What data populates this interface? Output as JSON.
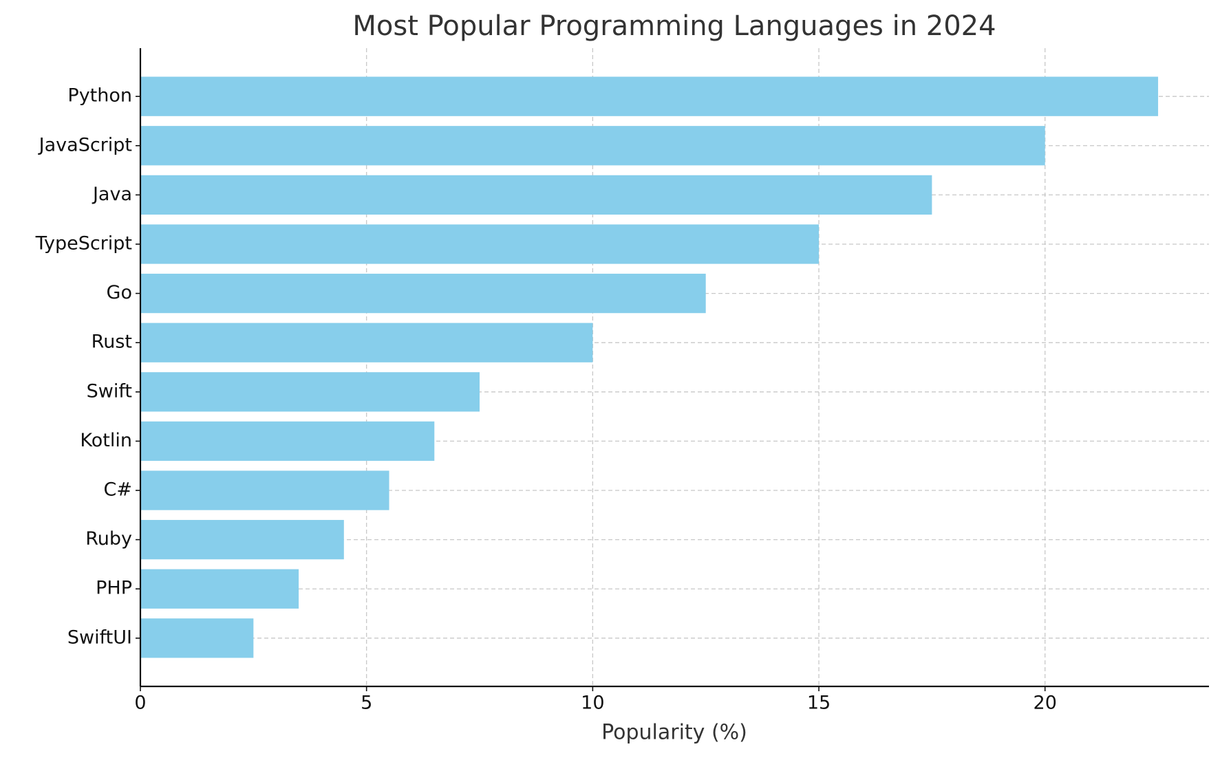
{
  "chart_data": {
    "type": "bar",
    "orientation": "horizontal",
    "title": "Most Popular Programming Languages in 2024",
    "x_label": "Popularity (%)",
    "categories": [
      "Python",
      "JavaScript",
      "Java",
      "TypeScript",
      "Go",
      "Rust",
      "Swift",
      "Kotlin",
      "C#",
      "Ruby",
      "PHP",
      "SwiftUI"
    ],
    "values": [
      22.5,
      20,
      17.5,
      15,
      12.5,
      10,
      7.5,
      6.5,
      5.5,
      4.5,
      3.5,
      2.5
    ],
    "color": "#87ceeb",
    "xlim": [
      0,
      23.625
    ],
    "xticks": [
      0,
      5,
      10,
      15,
      20
    ],
    "grid": true
  }
}
